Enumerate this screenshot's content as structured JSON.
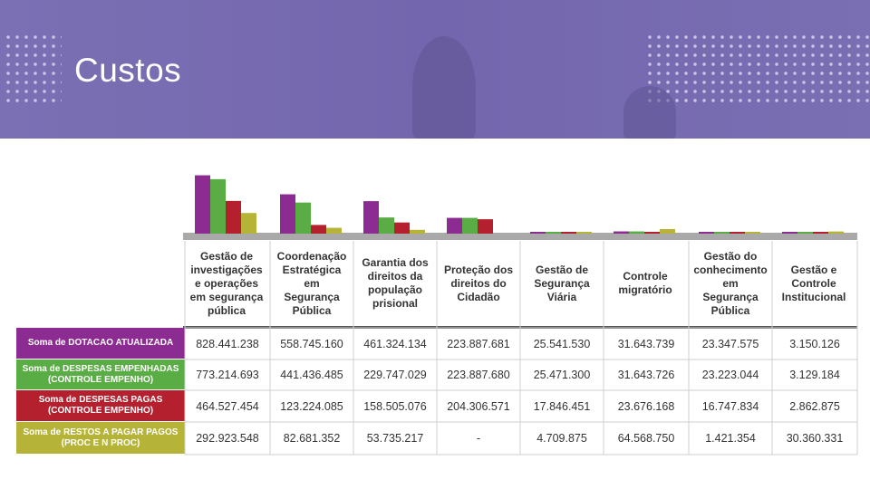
{
  "header": {
    "title": "Custos"
  },
  "colors": {
    "banner": "#7467ae",
    "dotacao": "#8c2b91",
    "empenhadas": "#5aac45",
    "pagas": "#b5202e",
    "restos": "#b6b438"
  },
  "chart_data": {
    "type": "bar",
    "title": "",
    "xlabel": "",
    "ylabel": "",
    "ylim": [
      0,
      900000000
    ],
    "categories": [
      "Gestão de investigações e operações em segurança pública",
      "Coordenação Estratégica em Segurança Pública",
      "Garantia dos direitos da população prisional",
      "Proteção dos direitos do Cidadão",
      "Gestão de Segurança Viária",
      "Controle migratório",
      "Gestão do conhecimento em Segurança Pública",
      "Gestão e Controle Institucional"
    ],
    "series": [
      {
        "name": "Soma de DOTACAO ATUALIZADA",
        "color": "#8c2b91",
        "values": [
          828441238,
          558745160,
          461324134,
          223887681,
          25541530,
          31643739,
          23347575,
          3150126
        ],
        "labels": [
          "828.441.238",
          "558.745.160",
          "461.324.134",
          "223.887.681",
          "25.541.530",
          "31.643.739",
          "23.347.575",
          "3.150.126"
        ]
      },
      {
        "name": "Soma de DESPESAS EMPENHADAS (CONTROLE EMPENHO)",
        "color": "#5aac45",
        "values": [
          773214693,
          441436485,
          229747029,
          223887680,
          25471300,
          31643726,
          23223044,
          3129184
        ],
        "labels": [
          "773.214.693",
          "441.436.485",
          "229.747.029",
          "223.887.680",
          "25.471.300",
          "31.643.726",
          "23.223.044",
          "3.129.184"
        ]
      },
      {
        "name": "Soma de DESPESAS PAGAS (CONTROLE EMPENHO)",
        "color": "#b5202e",
        "values": [
          464527454,
          123224085,
          158505076,
          204306571,
          17846451,
          23676168,
          16747834,
          2862875
        ],
        "labels": [
          "464.527.454",
          "123.224.085",
          "158.505.076",
          "204.306.571",
          "17.846.451",
          "23.676.168",
          "16.747.834",
          "2.862.875"
        ]
      },
      {
        "name": "Soma de RESTOS A PAGAR PAGOS (PROC E N PROC)",
        "color": "#b6b438",
        "values": [
          292923548,
          82681352,
          53735217,
          0,
          4709875,
          64568750,
          1421354,
          30360331
        ],
        "labels": [
          "292.923.548",
          "82.681.352",
          "53.735.217",
          "-",
          "4.709.875",
          "64.568.750",
          "1.421.354",
          "30.360.331"
        ]
      }
    ]
  }
}
